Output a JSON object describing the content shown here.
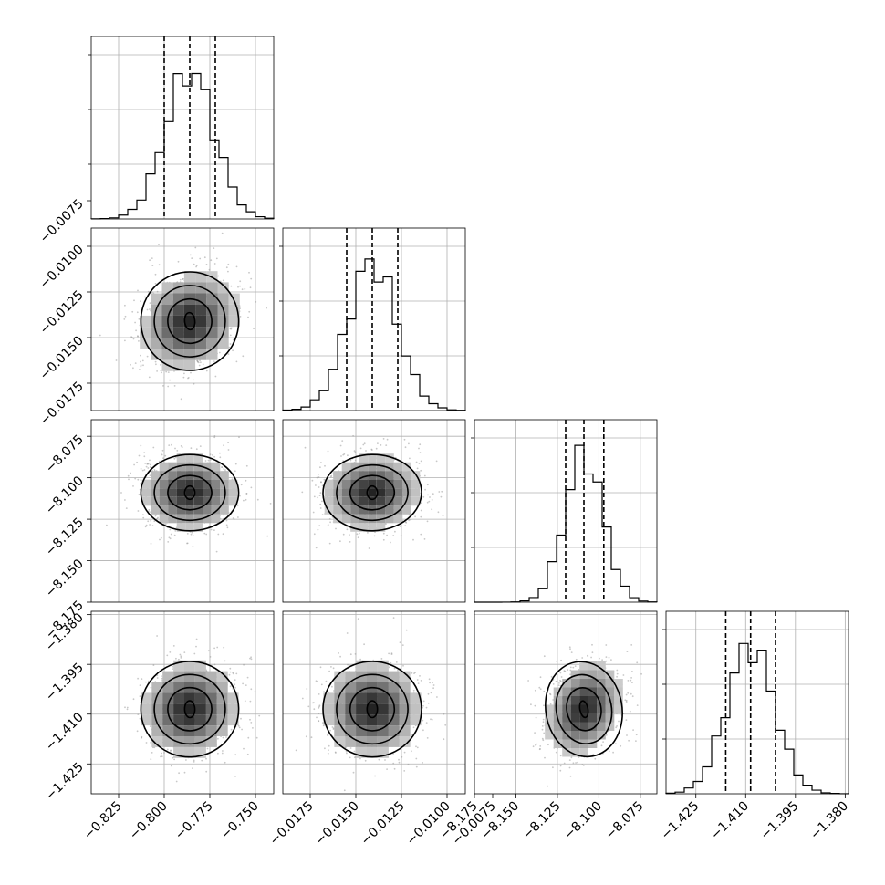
{
  "chart_data": {
    "type": "corner",
    "title": "",
    "grid": true,
    "colors": {
      "line": "#000000",
      "grid": "#b0b0b0",
      "points": "#9a9a9a",
      "background": "#ffffff"
    },
    "parameters": [
      {
        "index": 0,
        "range": [
          -0.84,
          -0.74
        ],
        "median": -0.786,
        "quantiles": [
          -0.8,
          -0.786,
          -0.772
        ],
        "sd": 0.0134,
        "x_ticks": [
          "−0.825",
          "−0.800",
          "−0.775",
          "−0.750"
        ],
        "x_tick_values": [
          -0.825,
          -0.8,
          -0.775,
          -0.75
        ],
        "y_ticks": [],
        "y_tick_values": []
      },
      {
        "index": 1,
        "range": [
          -0.019,
          -0.009
        ],
        "median": -0.0141,
        "quantiles": [
          -0.0155,
          -0.0141,
          -0.0127
        ],
        "sd": 0.00135,
        "x_ticks": [
          "−0.0175",
          "−0.0150",
          "−0.0125",
          "−0.0100",
          "−0.0075"
        ],
        "x_tick_values": [
          -0.0175,
          -0.015,
          -0.0125,
          -0.01,
          -0.0075
        ],
        "y_ticks": [
          "−0.0075",
          "−0.0100",
          "−0.0125",
          "−0.0150",
          "−0.0175"
        ],
        "y_tick_values": [
          -0.0075,
          -0.01,
          -0.0125,
          -0.015,
          -0.0175
        ]
      },
      {
        "index": 2,
        "range": [
          -8.175,
          -8.065
        ],
        "median": -8.109,
        "quantiles": [
          -8.12,
          -8.109,
          -8.097
        ],
        "sd": 0.0115,
        "x_ticks": [
          "−8.175",
          "−8.150",
          "−8.125",
          "−8.100",
          "−8.075"
        ],
        "x_tick_values": [
          -8.175,
          -8.15,
          -8.125,
          -8.1,
          -8.075
        ],
        "y_ticks": [
          "−8.075",
          "−8.100",
          "−8.125",
          "−8.150",
          "−8.175"
        ],
        "y_tick_values": [
          -8.075,
          -8.1,
          -8.125,
          -8.15,
          -8.175
        ]
      },
      {
        "index": 3,
        "range": [
          -1.434,
          -1.379
        ],
        "median": -1.4085,
        "quantiles": [
          -1.416,
          -1.4085,
          -1.401
        ],
        "sd": 0.0072,
        "x_ticks": [
          "−1.425",
          "−1.410",
          "−1.395",
          "−1.380"
        ],
        "x_tick_values": [
          -1.425,
          -1.41,
          -1.395,
          -1.38
        ],
        "y_ticks": [
          "−1.380",
          "−1.395",
          "−1.410",
          "−1.425"
        ],
        "y_tick_values": [
          -1.38,
          -1.395,
          -1.41,
          -1.425
        ]
      }
    ],
    "panels_2d": [
      {
        "x": 0,
        "y": 1,
        "correlation": 0.15
      },
      {
        "x": 0,
        "y": 2,
        "correlation": 0.0
      },
      {
        "x": 1,
        "y": 2,
        "correlation": 0.05
      },
      {
        "x": 0,
        "y": 3,
        "correlation": 0.05
      },
      {
        "x": 1,
        "y": 3,
        "correlation": 0.0
      },
      {
        "x": 2,
        "y": 3,
        "correlation": 0.25
      }
    ]
  }
}
